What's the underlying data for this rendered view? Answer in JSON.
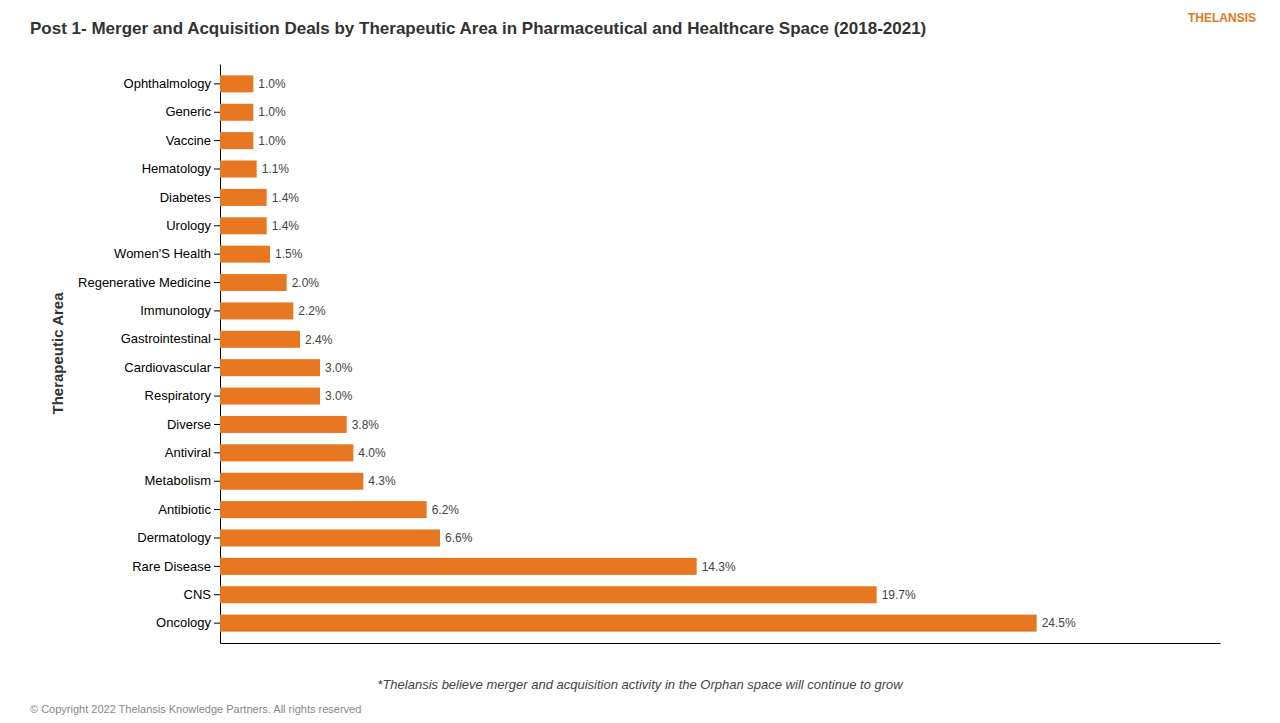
{
  "chart_data": {
    "type": "bar",
    "orientation": "horizontal",
    "title": "Post 1- Merger and Acquisition Deals by Therapeutic Area in Pharmaceutical and Healthcare Space (2018-2021)",
    "ylabel": "Therapeutic Area",
    "categories": [
      "Oncology",
      "CNS",
      "Rare Disease",
      "Dermatology",
      "Antibiotic",
      "Metabolism",
      "Antiviral",
      "Diverse",
      "Respiratory",
      "Cardiovascular",
      "Gastrointestinal",
      "Immunology",
      "Regenerative Medicine",
      "Women'S Health",
      "Urology",
      "Diabetes",
      "Hematology",
      "Vaccine",
      "Generic",
      "Ophthalmology"
    ],
    "values": [
      24.5,
      19.7,
      14.3,
      6.6,
      6.2,
      4.3,
      4.0,
      3.8,
      3.0,
      3.0,
      2.4,
      2.2,
      2.0,
      1.5,
      1.4,
      1.4,
      1.1,
      1.0,
      1.0,
      1.0
    ],
    "value_labels": [
      "24.5%",
      "19.7%",
      "14.3%",
      "6.6%",
      "6.2%",
      "4.3%",
      "4.0%",
      "3.8%",
      "3.0%",
      "3.0%",
      "2.4%",
      "2.2%",
      "2.0%",
      "1.5%",
      "1.4%",
      "1.4%",
      "1.1%",
      "1.0%",
      "1.0%",
      "1.0%"
    ],
    "color": "#E87722",
    "xlim": [
      0,
      30
    ],
    "xticks": [],
    "grid": false,
    "tick_labels": "y",
    "data_labels": true,
    "annotations": [
      "*Thelansis believe merger and acquisition activity in the Orphan space will continue to grow",
      "© Copyright 2022  Thelansis Knowledge Partners. All rights reserved",
      "THELANSIS"
    ]
  }
}
